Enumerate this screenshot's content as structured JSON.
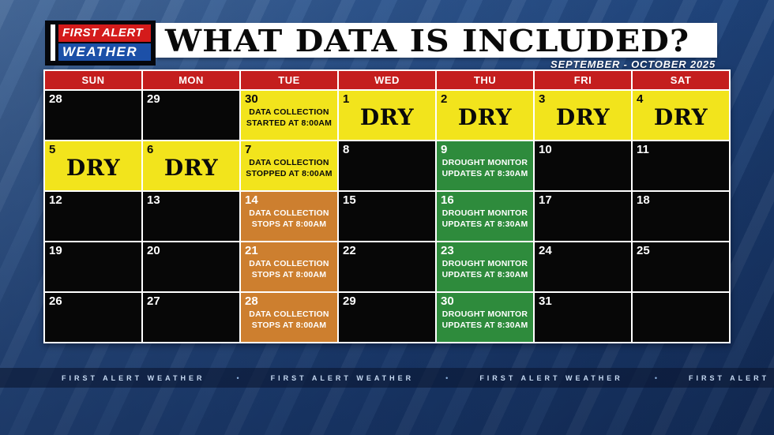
{
  "logo": {
    "line1": "FIRST ALERT",
    "line2": "WEATHER"
  },
  "header": {
    "title": "WHAT DATA IS INCLUDED?",
    "subtitle": "SEPTEMBER - OCTOBER 2025"
  },
  "calendar": {
    "weekdays": [
      "SUN",
      "MON",
      "TUE",
      "WED",
      "THU",
      "FRI",
      "SAT"
    ],
    "cells": [
      {
        "day": "28",
        "color": "black"
      },
      {
        "day": "29",
        "color": "black"
      },
      {
        "day": "30",
        "color": "yellow",
        "lines": [
          "DATA COLLECTION",
          "STARTED AT 8:00AM"
        ]
      },
      {
        "day": "1",
        "color": "yellow",
        "big": "DRY"
      },
      {
        "day": "2",
        "color": "yellow",
        "big": "DRY"
      },
      {
        "day": "3",
        "color": "yellow",
        "big": "DRY"
      },
      {
        "day": "4",
        "color": "yellow",
        "big": "DRY"
      },
      {
        "day": "5",
        "color": "yellow",
        "big": "DRY"
      },
      {
        "day": "6",
        "color": "yellow",
        "big": "DRY"
      },
      {
        "day": "7",
        "color": "yellow",
        "lines": [
          "DATA COLLECTION",
          "STOPPED AT 8:00AM"
        ]
      },
      {
        "day": "8",
        "color": "black"
      },
      {
        "day": "9",
        "color": "green",
        "lines": [
          "DROUGHT MONITOR",
          "UPDATES AT 8:30AM"
        ]
      },
      {
        "day": "10",
        "color": "black"
      },
      {
        "day": "11",
        "color": "black"
      },
      {
        "day": "12",
        "color": "black"
      },
      {
        "day": "13",
        "color": "black"
      },
      {
        "day": "14",
        "color": "orange",
        "lines": [
          "DATA COLLECTION",
          "STOPS AT 8:00AM"
        ]
      },
      {
        "day": "15",
        "color": "black"
      },
      {
        "day": "16",
        "color": "green",
        "lines": [
          "DROUGHT MONITOR",
          "UPDATES AT 8:30AM"
        ]
      },
      {
        "day": "17",
        "color": "black"
      },
      {
        "day": "18",
        "color": "black"
      },
      {
        "day": "19",
        "color": "black"
      },
      {
        "day": "20",
        "color": "black"
      },
      {
        "day": "21",
        "color": "orange",
        "lines": [
          "DATA COLLECTION",
          "STOPS AT 8:00AM"
        ]
      },
      {
        "day": "22",
        "color": "black"
      },
      {
        "day": "23",
        "color": "green",
        "lines": [
          "DROUGHT MONITOR",
          "UPDATES AT 8:30AM"
        ]
      },
      {
        "day": "24",
        "color": "black"
      },
      {
        "day": "25",
        "color": "black"
      },
      {
        "day": "26",
        "color": "black"
      },
      {
        "day": "27",
        "color": "black"
      },
      {
        "day": "28",
        "color": "orange",
        "lines": [
          "DATA COLLECTION",
          "STOPS AT 8:00AM"
        ]
      },
      {
        "day": "29",
        "color": "black"
      },
      {
        "day": "30",
        "color": "green",
        "lines": [
          "DROUGHT MONITOR",
          "UPDATES AT 8:30AM"
        ]
      },
      {
        "day": "31",
        "color": "black"
      },
      {
        "day": "",
        "color": "black"
      }
    ]
  },
  "ticker": {
    "item": "FIRST ALERT WEATHER",
    "separator": "•",
    "repeat": 4
  },
  "colors": {
    "header_red": "#c41e1e",
    "dry_yellow": "#f2e41c",
    "collection_orange": "#cd7f2f",
    "drought_green": "#2e8b3c",
    "cell_black": "#070707",
    "logo_red": "#d41b1b",
    "logo_blue": "#1c50a8",
    "background_blue": "#26508c"
  }
}
